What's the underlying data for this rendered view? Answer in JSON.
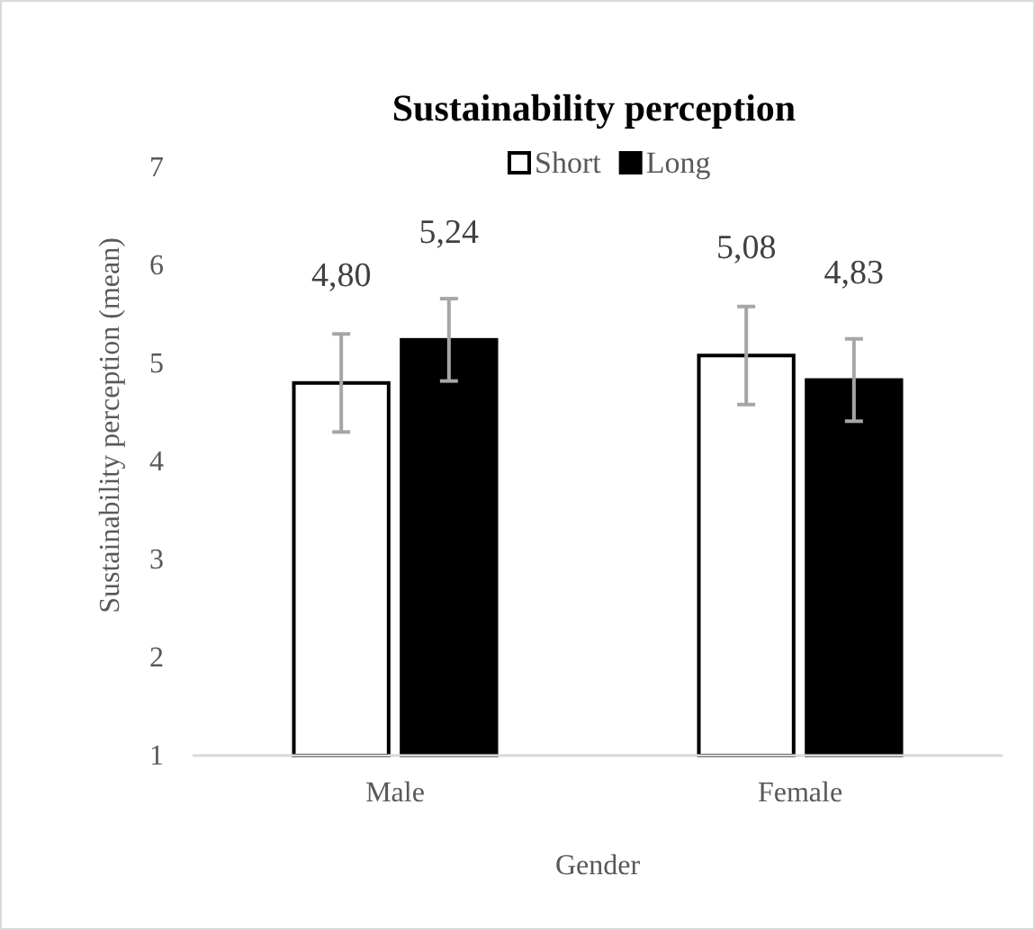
{
  "chart_data": {
    "type": "bar",
    "title": "Sustainability perception",
    "xlabel": "Gender",
    "ylabel": "Sustainability perception (mean)",
    "categories": [
      "Male",
      "Female"
    ],
    "series": [
      {
        "name": "Short",
        "color": "#ffffff",
        "values": [
          4.8,
          5.08
        ],
        "value_labels": [
          "4,80",
          "5,08"
        ],
        "errors": [
          0.5,
          0.5
        ]
      },
      {
        "name": "Long",
        "color": "#000000",
        "values": [
          5.24,
          4.83
        ],
        "value_labels": [
          "5,24",
          "4,83"
        ],
        "errors": [
          0.42,
          0.42
        ]
      }
    ],
    "ylim": [
      1,
      7
    ],
    "yticks": [
      1,
      2,
      3,
      4,
      5,
      6,
      7
    ],
    "legend": "top",
    "grid": false
  }
}
